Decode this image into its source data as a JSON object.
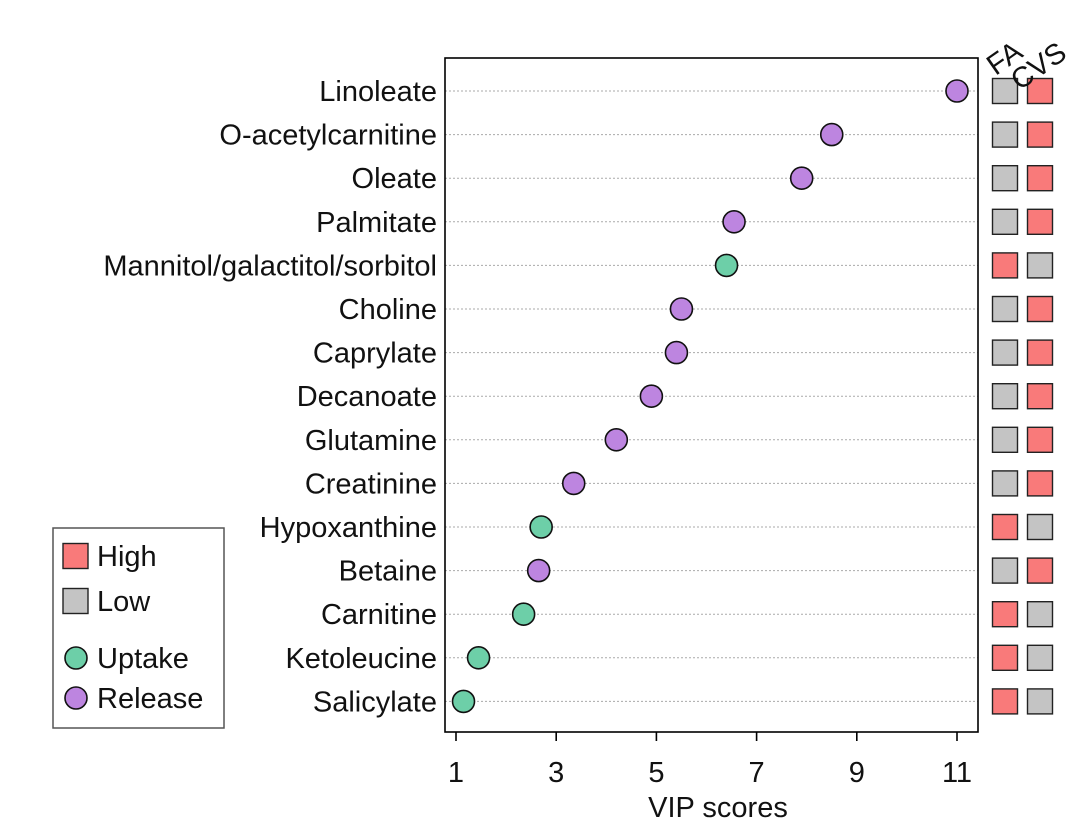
{
  "chart_data": {
    "type": "scatter",
    "title": "",
    "xlabel": "VIP scores",
    "ylabel": "",
    "xlim": [
      0.8,
      11.4
    ],
    "xticks": [
      1,
      3,
      5,
      7,
      9,
      11
    ],
    "grid": "horizontal dotted",
    "heat_columns": [
      "FA",
      "CVS"
    ],
    "rows": [
      {
        "name": "Linoleate",
        "vip": 11.0,
        "direction": "Release",
        "FA": "Low",
        "CVS": "High"
      },
      {
        "name": "O-acetylcarnitine",
        "vip": 8.5,
        "direction": "Release",
        "FA": "Low",
        "CVS": "High"
      },
      {
        "name": "Oleate",
        "vip": 7.9,
        "direction": "Release",
        "FA": "Low",
        "CVS": "High"
      },
      {
        "name": "Palmitate",
        "vip": 6.55,
        "direction": "Release",
        "FA": "Low",
        "CVS": "High"
      },
      {
        "name": "Mannitol/galactitol/sorbitol",
        "vip": 6.4,
        "direction": "Uptake",
        "FA": "High",
        "CVS": "Low"
      },
      {
        "name": "Choline",
        "vip": 5.5,
        "direction": "Release",
        "FA": "Low",
        "CVS": "High"
      },
      {
        "name": "Caprylate",
        "vip": 5.4,
        "direction": "Release",
        "FA": "Low",
        "CVS": "High"
      },
      {
        "name": "Decanoate",
        "vip": 4.9,
        "direction": "Release",
        "FA": "Low",
        "CVS": "High"
      },
      {
        "name": "Glutamine",
        "vip": 4.2,
        "direction": "Release",
        "FA": "Low",
        "CVS": "High"
      },
      {
        "name": "Creatinine",
        "vip": 3.35,
        "direction": "Release",
        "FA": "Low",
        "CVS": "High"
      },
      {
        "name": "Hypoxanthine",
        "vip": 2.7,
        "direction": "Uptake",
        "FA": "High",
        "CVS": "Low"
      },
      {
        "name": "Betaine",
        "vip": 2.65,
        "direction": "Release",
        "FA": "Low",
        "CVS": "High"
      },
      {
        "name": "Carnitine",
        "vip": 2.35,
        "direction": "Uptake",
        "FA": "High",
        "CVS": "Low"
      },
      {
        "name": "Ketoleucine",
        "vip": 1.45,
        "direction": "Uptake",
        "FA": "High",
        "CVS": "Low"
      },
      {
        "name": "Salicylate",
        "vip": 1.15,
        "direction": "Uptake",
        "FA": "High",
        "CVS": "Low"
      }
    ],
    "legend": {
      "placement": "bottom-left",
      "items": [
        {
          "label": "High",
          "shape": "square",
          "key": "High"
        },
        {
          "label": "Low",
          "shape": "square",
          "key": "Low"
        },
        {
          "label": "Uptake",
          "shape": "circle",
          "key": "Uptake"
        },
        {
          "label": "Release",
          "shape": "circle",
          "key": "Release"
        }
      ]
    },
    "colors": {
      "High": "#f97a7a",
      "Low": "#c4c4c4",
      "Uptake": "#6dcfa8",
      "Release": "#bd85e0",
      "grid": "#aaaaaa",
      "axis": "#000000"
    }
  }
}
